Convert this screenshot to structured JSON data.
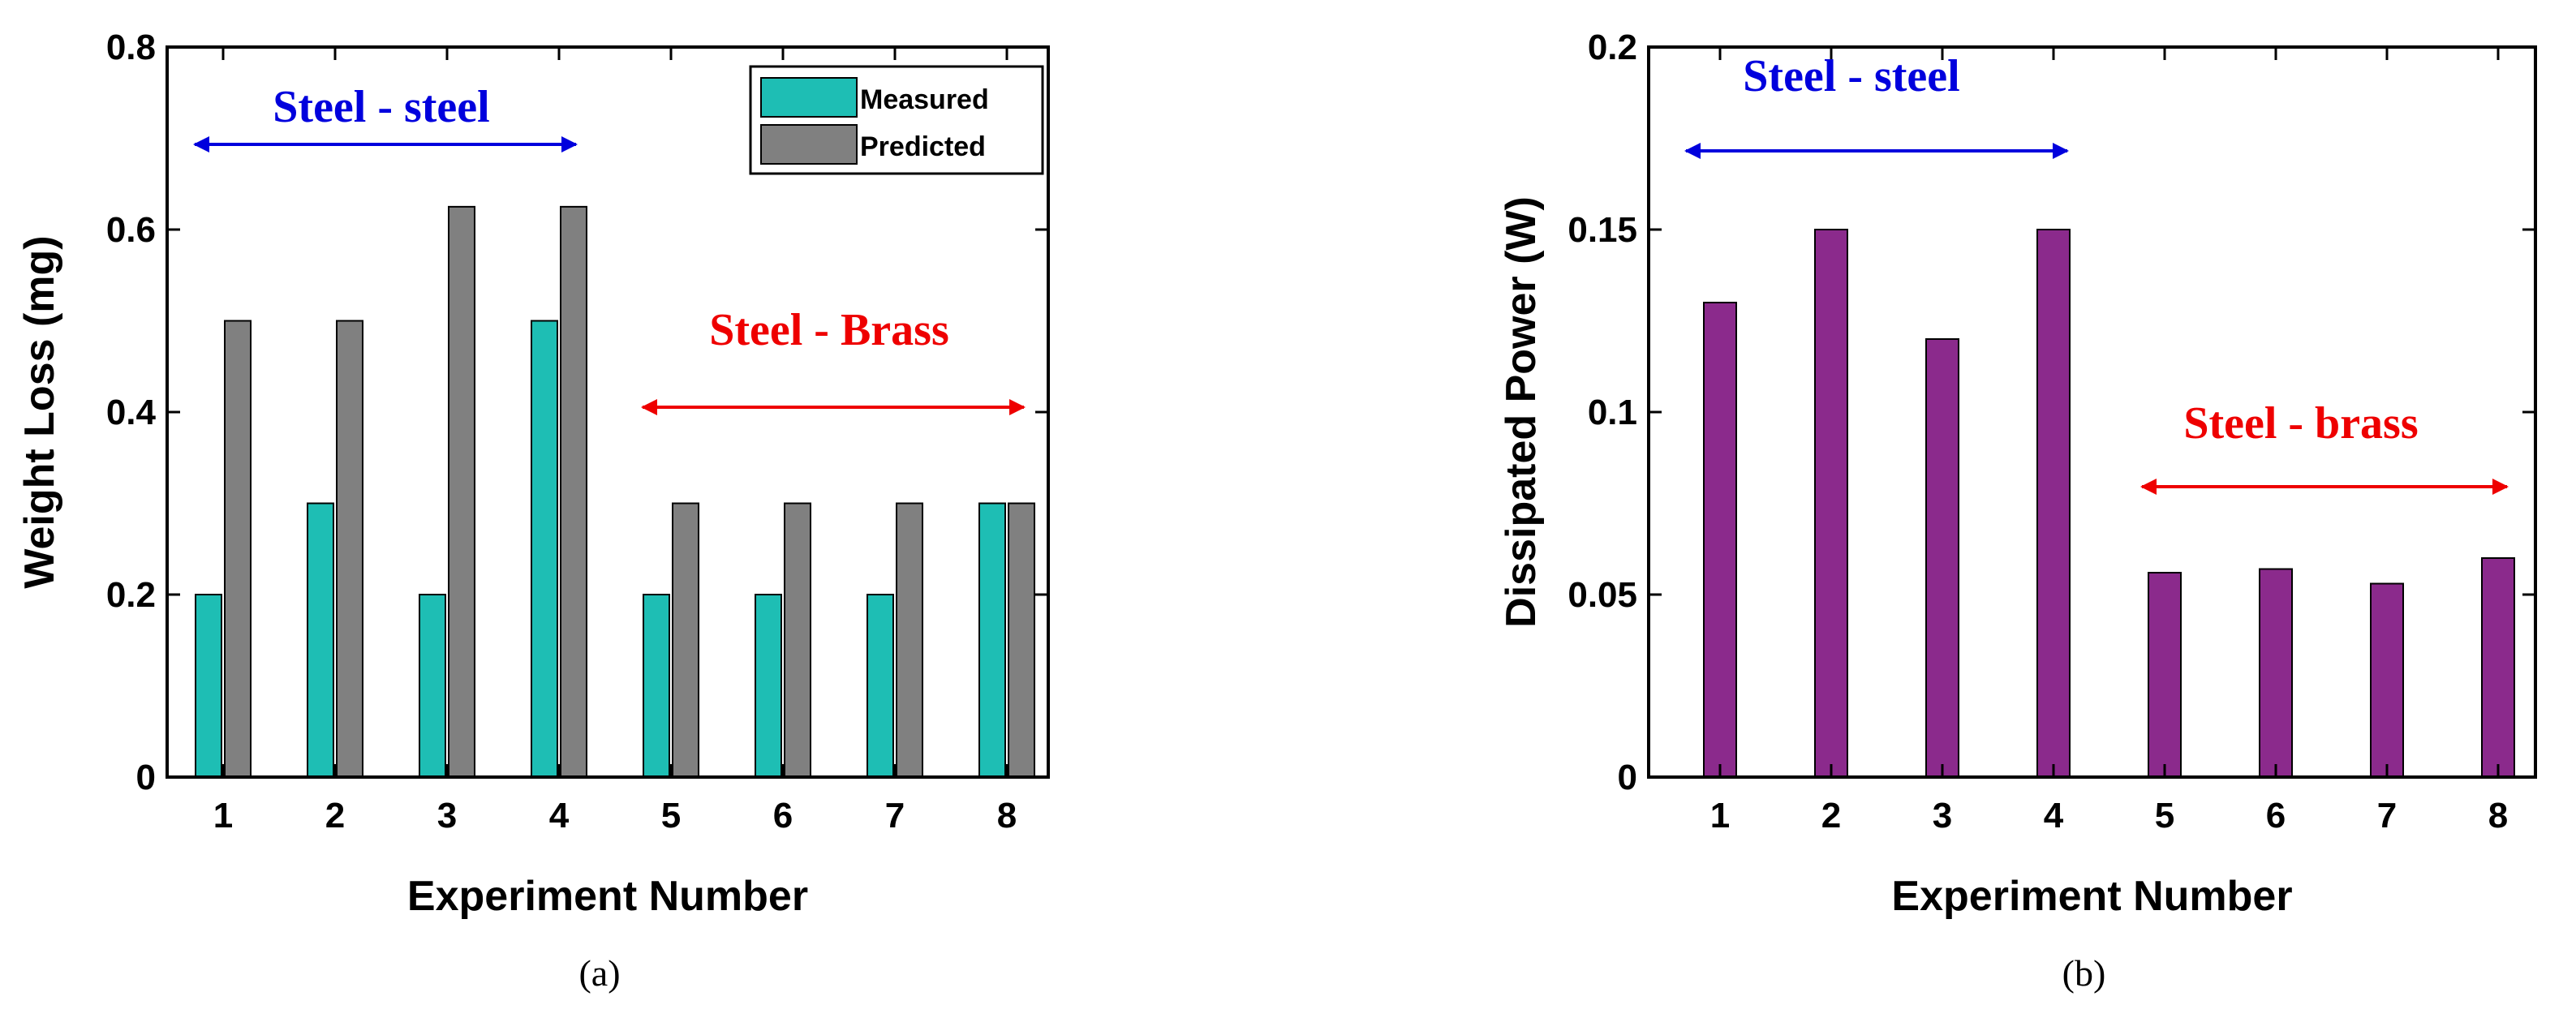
{
  "chart_data": [
    {
      "type": "bar",
      "panel_label": "(a)",
      "categories": [
        "1",
        "2",
        "3",
        "4",
        "5",
        "6",
        "7",
        "8"
      ],
      "series": [
        {
          "name": "Measured",
          "color": "#1ebeb4",
          "values": [
            0.2,
            0.3,
            0.2,
            0.5,
            0.2,
            0.2,
            0.2,
            0.3
          ]
        },
        {
          "name": "Predicted",
          "color": "#808080",
          "values": [
            0.5,
            0.5,
            0.625,
            0.625,
            0.3,
            0.3,
            0.3,
            0.3
          ]
        }
      ],
      "xlabel": "Experiment Number",
      "ylabel": "Weight Loss (mg)",
      "ylim": [
        0,
        0.8
      ],
      "yticks": [
        0,
        0.2,
        0.4,
        0.6,
        0.8
      ],
      "ytick_labels": [
        "0",
        "0.2",
        "0.4",
        "0.6",
        "0.8"
      ],
      "legend_position": "top-right",
      "annotations": [
        {
          "text": "Steel - steel",
          "color": "#0000dd",
          "from": 1,
          "to": 4
        },
        {
          "text": "Steel - Brass",
          "color": "#ee0000",
          "from": 5,
          "to": 8
        }
      ]
    },
    {
      "type": "bar",
      "panel_label": "(b)",
      "categories": [
        "1",
        "2",
        "3",
        "4",
        "5",
        "6",
        "7",
        "8"
      ],
      "series": [
        {
          "name": "Dissipated Power",
          "color": "#8b2a8c",
          "values": [
            0.13,
            0.15,
            0.12,
            0.15,
            0.056,
            0.057,
            0.053,
            0.06
          ]
        }
      ],
      "xlabel": "Experiment Number",
      "ylabel": "Dissipated Power (W)",
      "ylim": [
        0,
        0.2
      ],
      "yticks": [
        0,
        0.05,
        0.1,
        0.15,
        0.2
      ],
      "ytick_labels": [
        "0",
        "0.05",
        "0.1",
        "0.15",
        "0.2"
      ],
      "annotations": [
        {
          "text": "Steel - steel",
          "color": "#0000dd",
          "from": 1,
          "to": 4
        },
        {
          "text": "Steel - brass",
          "color": "#ee0000",
          "from": 5,
          "to": 8
        }
      ]
    }
  ]
}
